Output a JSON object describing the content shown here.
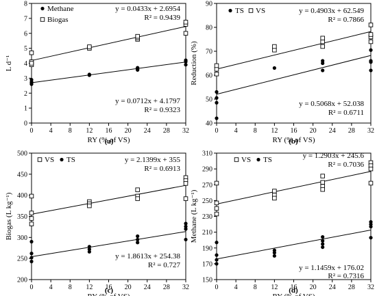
{
  "chart_data": [
    {
      "type": "scatter",
      "panel_label": "(a)",
      "xlabel": "RY (% of VS)",
      "ylabel": "L d⁻¹",
      "xlim": [
        0,
        32
      ],
      "ylim": [
        0,
        8
      ],
      "xticks": [
        0,
        4,
        8,
        12,
        16,
        20,
        24,
        28,
        32
      ],
      "yticks": [
        0,
        1,
        2,
        3,
        4,
        5,
        6,
        7,
        8
      ],
      "legend_position": "top-left",
      "series": [
        {
          "name": "Methane",
          "marker": "filled-circle",
          "points": [
            [
              0,
              2.6
            ],
            [
              0,
              2.7
            ],
            [
              0,
              2.9
            ],
            [
              0,
              2.75
            ],
            [
              12,
              3.2
            ],
            [
              12,
              3.25
            ],
            [
              22,
              3.55
            ],
            [
              22,
              3.6
            ],
            [
              22,
              3.7
            ],
            [
              32,
              3.9
            ],
            [
              32,
              4.1
            ],
            [
              32,
              4.2
            ]
          ],
          "fit": {
            "slope": 0.0433,
            "intercept": 2.6954
          },
          "equation": "y = 0.0433x + 2.6954",
          "r2": "R² = 0.9439"
        },
        {
          "name": "Biogas",
          "marker": "open-square",
          "points": [
            [
              0,
              3.9
            ],
            [
              0,
              4.1
            ],
            [
              0,
              4.7
            ],
            [
              0,
              4.0
            ],
            [
              12,
              5.0
            ],
            [
              12,
              5.1
            ],
            [
              22,
              5.6
            ],
            [
              22,
              5.7
            ],
            [
              22,
              5.8
            ],
            [
              32,
              6.0
            ],
            [
              32,
              6.6
            ],
            [
              32,
              6.75
            ]
          ],
          "fit": {
            "slope": 0.0712,
            "intercept": 4.1797
          },
          "equation": "y = 0.0712x + 4.1797",
          "r2": "R² = 0.9323"
        }
      ]
    },
    {
      "type": "scatter",
      "panel_label": "(b)",
      "xlabel": "RY (% of VS)",
      "ylabel": "Reduction (%)",
      "xlim": [
        0,
        32
      ],
      "ylim": [
        40,
        90
      ],
      "xticks": [
        0,
        4,
        8,
        12,
        16,
        20,
        24,
        28,
        32
      ],
      "yticks": [
        40,
        50,
        60,
        70,
        80,
        90
      ],
      "legend_position": "top-left",
      "series": [
        {
          "name": "TS",
          "marker": "filled-circle",
          "points": [
            [
              0,
              42
            ],
            [
              0,
              48.5
            ],
            [
              0,
              50.5
            ],
            [
              0,
              53
            ],
            [
              12,
              63
            ],
            [
              22,
              62
            ],
            [
              22,
              65
            ],
            [
              22,
              66
            ],
            [
              32,
              62
            ],
            [
              32,
              65.5
            ],
            [
              32,
              66
            ],
            [
              32,
              70.5
            ]
          ],
          "fit": {
            "slope": 0.5068,
            "intercept": 52.038
          },
          "equation": "y = 0.5068x + 52.038",
          "r2": "R² = 0.6711"
        },
        {
          "name": "VS",
          "marker": "open-square",
          "points": [
            [
              0,
              60.5
            ],
            [
              0,
              62.5
            ],
            [
              0,
              64
            ],
            [
              12,
              70.5
            ],
            [
              12,
              72
            ],
            [
              22,
              72
            ],
            [
              22,
              74
            ],
            [
              22,
              75.5
            ],
            [
              32,
              74
            ],
            [
              32,
              76
            ],
            [
              32,
              77
            ],
            [
              32,
              81
            ]
          ],
          "fit": {
            "slope": 0.4903,
            "intercept": 62.549
          },
          "equation": "y = 0.4903x + 62.549",
          "r2": "R² = 0.7866"
        }
      ]
    },
    {
      "type": "scatter",
      "panel_label": "(c)",
      "xlabel": "RY (% of VS)",
      "ylabel": "Biogas (L kg⁻¹)",
      "xlim": [
        0,
        32
      ],
      "ylim": [
        200,
        500
      ],
      "xticks": [
        0,
        4,
        8,
        12,
        16,
        20,
        24,
        28,
        32
      ],
      "yticks": [
        200,
        250,
        300,
        350,
        400,
        450,
        500
      ],
      "legend_position": "top-left",
      "series": [
        {
          "name": "VS",
          "marker": "open-square",
          "points": [
            [
              0,
              398
            ],
            [
              0,
              358
            ],
            [
              0,
              345
            ],
            [
              0,
              332
            ],
            [
              12,
              385
            ],
            [
              12,
              380
            ],
            [
              12,
              375
            ],
            [
              22,
              413
            ],
            [
              22,
              398
            ],
            [
              22,
              392
            ],
            [
              32,
              442
            ],
            [
              32,
              435
            ],
            [
              32,
              428
            ],
            [
              32,
              392
            ]
          ],
          "fit": {
            "slope": 2.1399,
            "intercept": 355
          },
          "equation": "y = 2.1399x + 355",
          "r2": "R² = 0.6913"
        },
        {
          "name": "TS",
          "marker": "filled-circle",
          "points": [
            [
              0,
              290
            ],
            [
              0,
              262
            ],
            [
              0,
              252
            ],
            [
              0,
              243
            ],
            [
              12,
              278
            ],
            [
              12,
              272
            ],
            [
              12,
              266
            ],
            [
              22,
              303
            ],
            [
              22,
              295
            ],
            [
              22,
              288
            ],
            [
              32,
              333
            ],
            [
              32,
              326
            ],
            [
              32,
              320
            ],
            [
              32,
              295
            ]
          ],
          "fit": {
            "slope": 1.8613,
            "intercept": 254.38
          },
          "equation": "y = 1.8613x + 254.38",
          "r2": "R² = 0.727"
        }
      ]
    },
    {
      "type": "scatter",
      "panel_label": "(d)",
      "xlabel": "RY (% of VS)",
      "ylabel": "Methane (L kg⁻¹)",
      "xlim": [
        0,
        32
      ],
      "ylim": [
        150,
        310
      ],
      "xticks": [
        0,
        4,
        8,
        12,
        16,
        20,
        24,
        28,
        32
      ],
      "yticks": [
        150,
        170,
        190,
        210,
        230,
        250,
        270,
        290,
        310
      ],
      "legend_position": "top-left",
      "series": [
        {
          "name": "VS",
          "marker": "open-square",
          "points": [
            [
              0,
              272
            ],
            [
              0,
              247
            ],
            [
              0,
              240
            ],
            [
              0,
              233
            ],
            [
              12,
              262
            ],
            [
              12,
              257
            ],
            [
              12,
              253
            ],
            [
              22,
              281
            ],
            [
              22,
              273
            ],
            [
              22,
              268
            ],
            [
              22,
              264
            ],
            [
              32,
              298
            ],
            [
              32,
              294
            ],
            [
              32,
              290
            ],
            [
              32,
              272
            ]
          ],
          "fit": {
            "slope": 1.2903,
            "intercept": 245.6
          },
          "equation": "y = 1.2903x + 245.6",
          "r2": "R² = 0.7036"
        },
        {
          "name": "TS",
          "marker": "filled-circle",
          "points": [
            [
              0,
              197
            ],
            [
              0,
              181
            ],
            [
              0,
              175
            ],
            [
              0,
              170
            ],
            [
              12,
              187
            ],
            [
              12,
              184
            ],
            [
              12,
              180
            ],
            [
              22,
              204
            ],
            [
              22,
              199
            ],
            [
              22,
              195
            ],
            [
              22,
              191
            ],
            [
              32,
              223
            ],
            [
              32,
              220
            ],
            [
              32,
              217
            ],
            [
              32,
              203
            ]
          ],
          "fit": {
            "slope": 1.1459,
            "intercept": 176.02
          },
          "equation": "y = 1.1459x + 176.02",
          "r2": "R² = 0.7316"
        }
      ]
    }
  ]
}
